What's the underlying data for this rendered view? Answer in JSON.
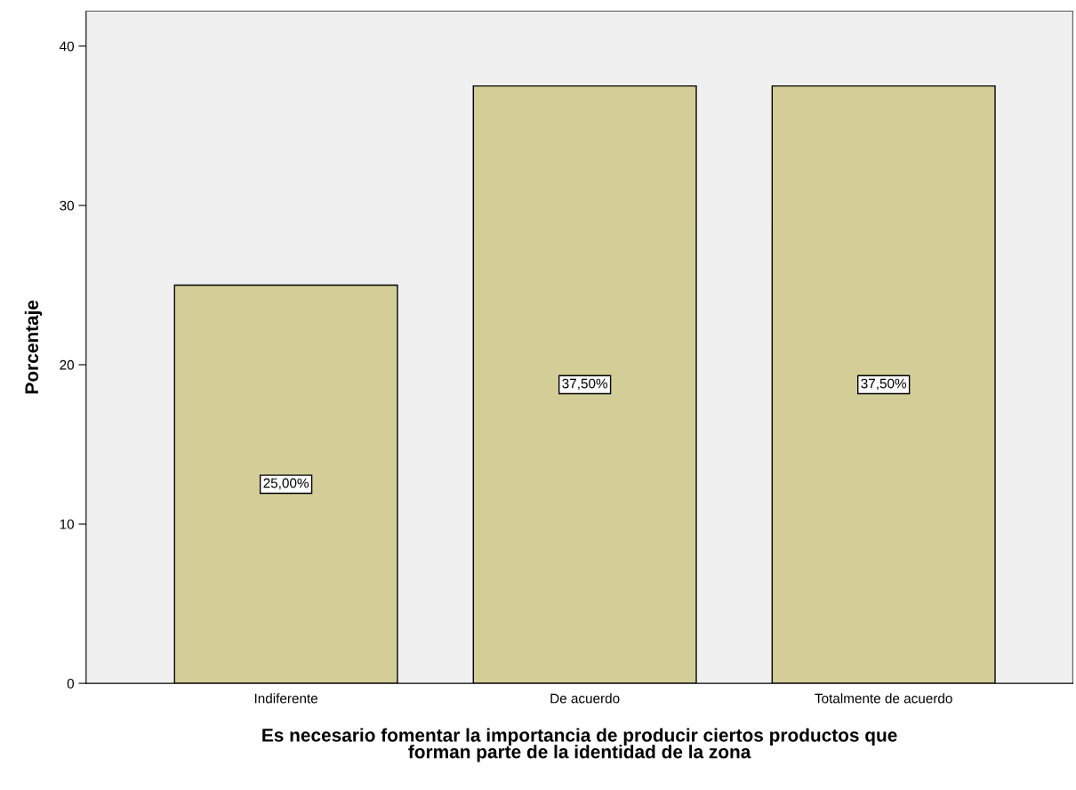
{
  "chart_data": {
    "type": "bar",
    "xlabel": "Es necesario fomentar la importancia de producir ciertos productos que\nforman parte de la identidad de la zona",
    "ylabel": "Porcentaje",
    "categories": [
      "Indiferente",
      "De acuerdo",
      "Totalmente de acuerdo"
    ],
    "values": [
      25,
      37.5,
      37.5
    ],
    "value_labels": [
      "25,00%",
      "37,50%",
      "37,50%"
    ],
    "color": "#d3ce98",
    "ylim": [
      0,
      42.2
    ],
    "yticks": [
      0,
      10,
      20,
      30,
      40
    ],
    "grid": false,
    "legend": false
  }
}
